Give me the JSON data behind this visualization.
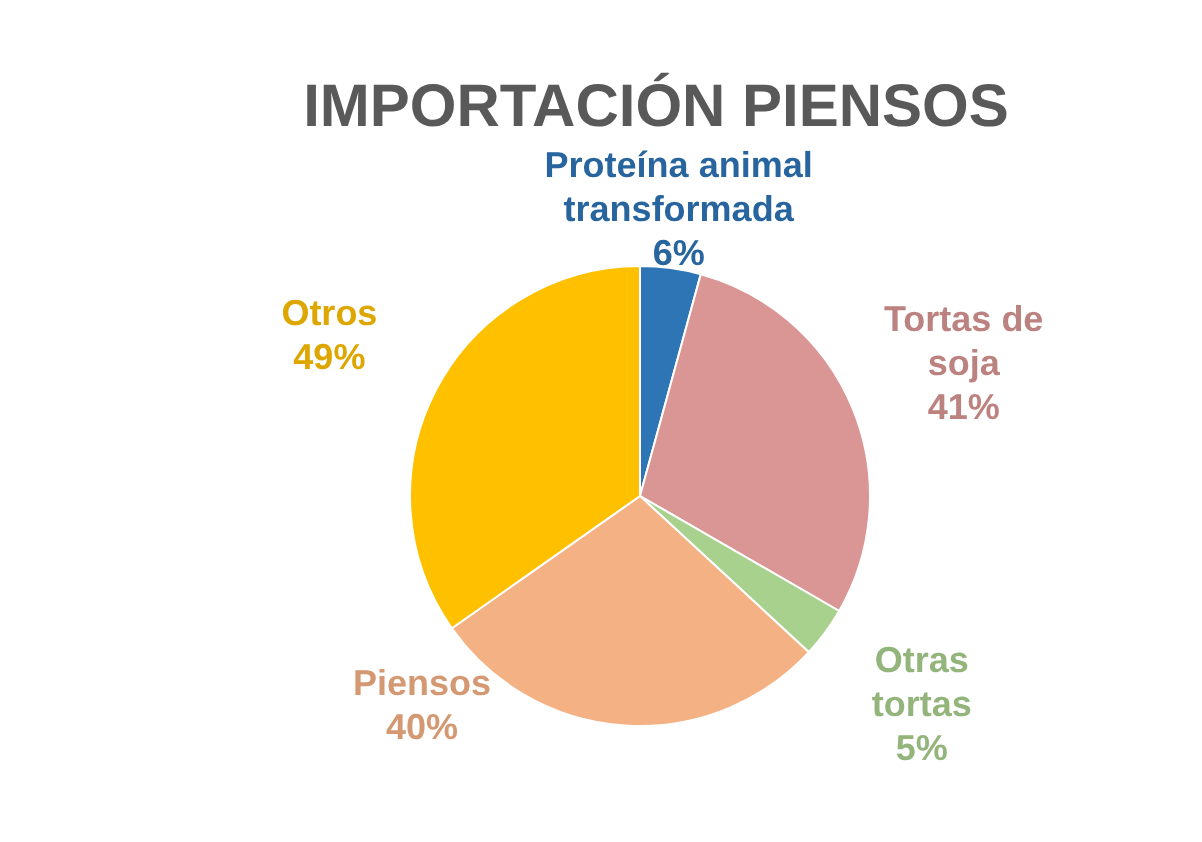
{
  "chart_data": {
    "type": "pie",
    "title": "IMPORTACIÓN PIENSOS",
    "categories": [
      "Proteína animal transformada",
      "Tortas de soja",
      "Otras tortas",
      "Piensos",
      "Otros"
    ],
    "values": [
      6,
      41,
      5,
      40,
      49
    ],
    "colors": [
      "#2e75b6",
      "#d99694",
      "#a9d18e",
      "#f4b183",
      "#ffc000"
    ],
    "value_labels": [
      "6%",
      "41%",
      "5%",
      "40%",
      "49%"
    ]
  }
}
